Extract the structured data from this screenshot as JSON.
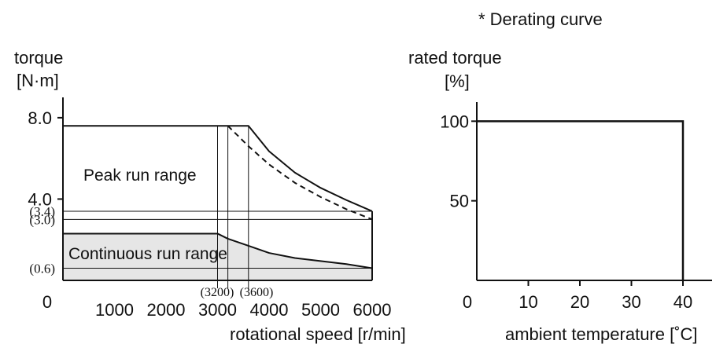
{
  "header_note": "* Derating curve",
  "chart_data": [
    {
      "type": "line",
      "ylabel_line1": "torque",
      "ylabel_line2": "[N·m]",
      "xlabel": "rotational speed [r/min]",
      "xlim": [
        0,
        6000
      ],
      "ylim": [
        0,
        9
      ],
      "x_ticks": [
        1000,
        2000,
        3000,
        4000,
        5000,
        6000
      ],
      "x_tick_labels": [
        "1000",
        "2000",
        "3000",
        "4000",
        "5000",
        "6000"
      ],
      "y_ticks": [
        4.0,
        8.0
      ],
      "y_tick_labels": [
        "4.0",
        "8.0"
      ],
      "origin_label": "0",
      "annot_x": [
        {
          "x": 3200,
          "label": "(3200)"
        },
        {
          "x": 3600,
          "label": "(3600)"
        }
      ],
      "annot_y": [
        {
          "y": 3.4,
          "label": "(3.4)"
        },
        {
          "y": 3.0,
          "label": "(3.0)"
        },
        {
          "y": 0.6,
          "label": "(0.6)"
        }
      ],
      "region_labels": {
        "peak": "Peak run range",
        "continuous": "Continuous run range"
      },
      "fill_color": "#e6e6e6",
      "series": [
        {
          "style": "solid",
          "x": [
            0,
            3600,
            4000,
            4500,
            5000,
            5500,
            6000
          ],
          "y": [
            7.6,
            7.6,
            6.35,
            5.3,
            4.55,
            3.95,
            3.4
          ]
        },
        {
          "style": "dashed",
          "x": [
            3200,
            3600,
            4000,
            4500,
            5000,
            5500,
            6000
          ],
          "y": [
            7.6,
            6.6,
            5.7,
            4.8,
            4.1,
            3.5,
            3.0
          ]
        },
        {
          "style": "solid",
          "x": [
            0,
            3000,
            3200,
            3600,
            4000,
            4500,
            5000,
            5500,
            6000
          ],
          "y": [
            2.3,
            2.3,
            2.05,
            1.7,
            1.35,
            1.1,
            0.95,
            0.8,
            0.6
          ]
        }
      ]
    },
    {
      "type": "line",
      "ylabel_line1": "rated torque",
      "ylabel_line2": "[%]",
      "xlabel": "ambient temperature [˚C]",
      "xlim": [
        0,
        40
      ],
      "ylim": [
        0,
        112
      ],
      "x_ticks": [
        10,
        20,
        30,
        40
      ],
      "x_tick_labels": [
        "10",
        "20",
        "30",
        "40"
      ],
      "y_ticks": [
        50,
        100
      ],
      "y_tick_labels": [
        "50",
        "100"
      ],
      "origin_label": "0",
      "series": [
        {
          "style": "solid",
          "x": [
            0,
            40,
            40
          ],
          "y": [
            100,
            100,
            0
          ]
        }
      ]
    }
  ]
}
